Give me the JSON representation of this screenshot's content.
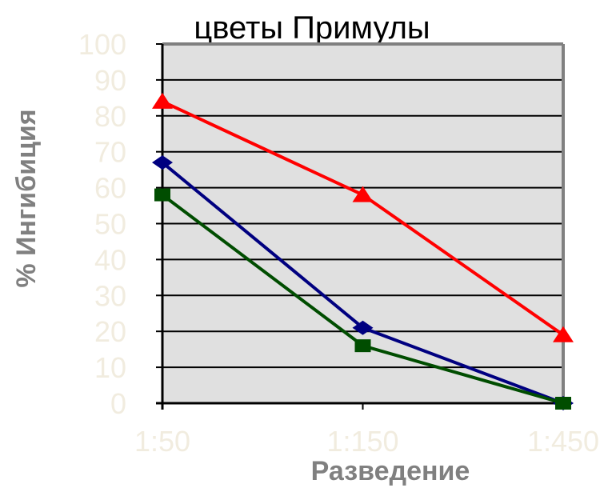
{
  "chart_data": {
    "type": "line",
    "title": "цветы Примулы",
    "xlabel": "Разведение",
    "ylabel": "% Ингибиция",
    "categories": [
      "1:50",
      "1:150",
      "1:450"
    ],
    "ylim": [
      0,
      100
    ],
    "yticks": [
      0,
      10,
      20,
      30,
      40,
      50,
      60,
      70,
      80,
      90,
      100
    ],
    "grid": true,
    "series": [
      {
        "values": [
          67,
          21,
          0
        ],
        "color": "#000080",
        "marker": "diamond"
      },
      {
        "values": [
          58,
          16,
          0
        ],
        "color": "#004d00",
        "marker": "square"
      },
      {
        "values": [
          84,
          58,
          19
        ],
        "color": "#ff0000",
        "marker": "triangle"
      }
    ],
    "colors": {
      "plot_background": "#e0e0e0",
      "gridline": "#000000",
      "plot_border": "#808080",
      "tick_label": "#f1ecdf",
      "axis_title": "#808080"
    }
  }
}
